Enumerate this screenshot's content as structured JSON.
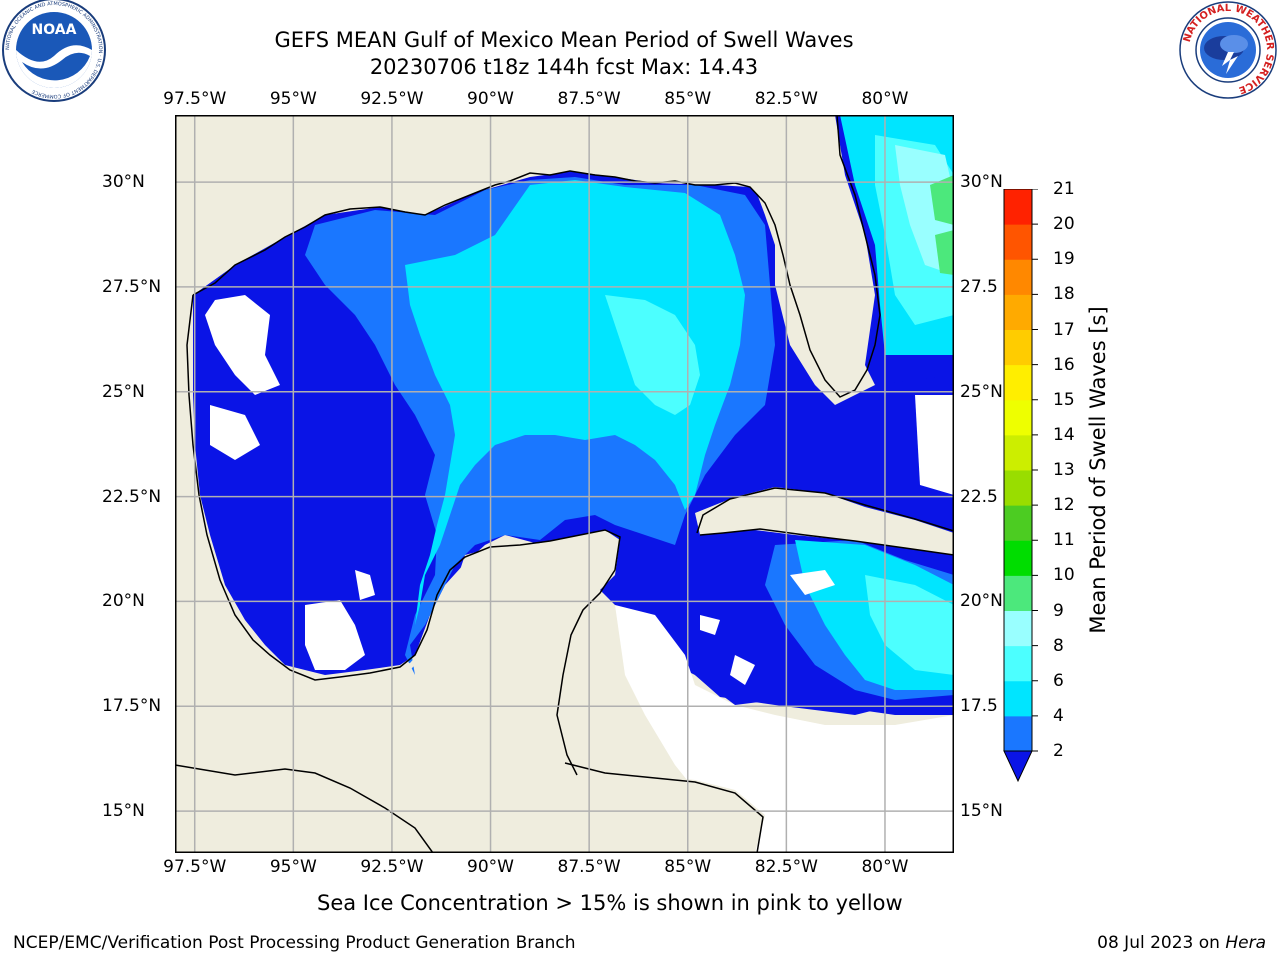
{
  "header": {
    "title_line1": "GEFS MEAN Gulf of Mexico Mean Period of Swell Waves",
    "title_line2": "20230706 t18z 144h fcst   Max: 14.43"
  },
  "logos": {
    "noaa_text": "NOAA",
    "noaa_ring": "NATIONAL OCEANIC AND ATMOSPHERIC ADMINISTRATION · U.S. DEPARTMENT OF COMMERCE",
    "nws_ring": "NATIONAL WEATHER SERVICE"
  },
  "map": {
    "lon_ticks": [
      "97.5°W",
      "95°W",
      "92.5°W",
      "90°W",
      "87.5°W",
      "85°W",
      "82.5°W",
      "80°W"
    ],
    "lat_ticks_left": [
      "30°N",
      "27.5°N",
      "25°N",
      "22.5°N",
      "20°N",
      "17.5°N",
      "15°N"
    ],
    "lat_ticks_right": [
      "30°N",
      "27.5",
      "25°N",
      "22.5",
      "20°N",
      "17.5",
      "15°N"
    ],
    "lon_values": [
      -97.5,
      -95,
      -92.5,
      -90,
      -87.5,
      -85,
      -82.5,
      -80
    ],
    "lat_values": [
      30,
      27.5,
      25,
      22.5,
      20,
      17.5,
      15
    ],
    "extent": {
      "lon_min": -98,
      "lon_max": -78.25,
      "lat_min": 14.0,
      "lat_max": 31.6
    },
    "colors": {
      "land": "#efedde",
      "ocean_missing": "#ffffff",
      "grid": "#b0b0b0"
    }
  },
  "colorbar": {
    "label": "Mean Period of Swell Waves [s]",
    "ticks": [
      "2",
      "4",
      "6",
      "8",
      "9",
      "10",
      "11",
      "12",
      "13",
      "14",
      "15",
      "16",
      "17",
      "18",
      "19",
      "20",
      "21"
    ],
    "levels": [
      2,
      4,
      6,
      8,
      9,
      10,
      11,
      12,
      13,
      14,
      15,
      16,
      17,
      18,
      19,
      20,
      21
    ],
    "colors": [
      "#1a77ff",
      "#00e5ff",
      "#4cffff",
      "#99ffff",
      "#4ce87c",
      "#00dd00",
      "#4ccc22",
      "#99dd00",
      "#ccee00",
      "#eeff00",
      "#ffee00",
      "#ffcc00",
      "#ffaa00",
      "#ff8800",
      "#ff5500",
      "#ff2200"
    ],
    "under_color": "#0a14e6"
  },
  "notes": {
    "sea_ice": "Sea Ice Concentration > 15% is shown in pink to yellow"
  },
  "footer": {
    "left": "NCEP/EMC/Verification Post Processing Product Generation Branch",
    "date_prefix": "08 Jul 2023 on ",
    "host": "Hera"
  }
}
